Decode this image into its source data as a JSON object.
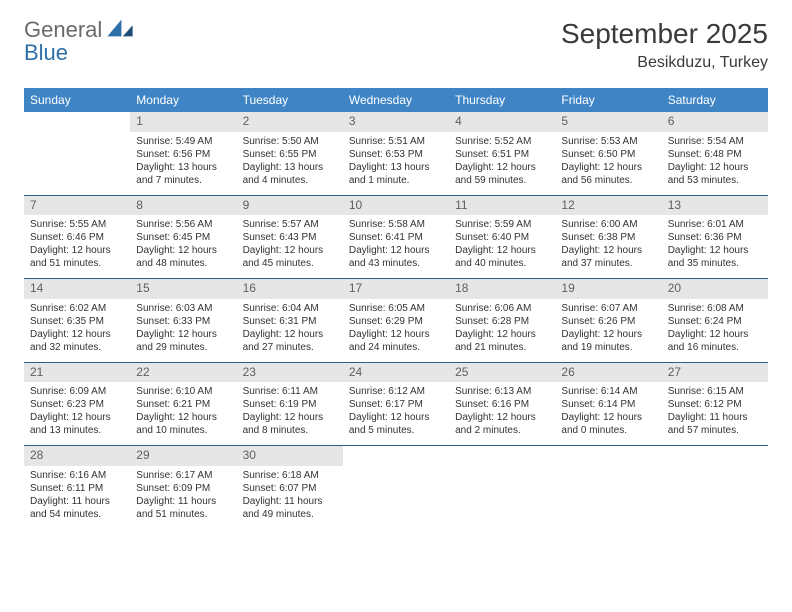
{
  "brand": {
    "line1": "General",
    "line2": "Blue"
  },
  "title": {
    "month": "September 2025",
    "location": "Besikduzu, Turkey"
  },
  "colors": {
    "header_bg": "#3f85c6",
    "header_text": "#ffffff",
    "row_divider": "#2c5f8d",
    "daynum_bg": "#e6e6e6",
    "daynum_text": "#5f5f5f",
    "body_text": "#333333",
    "brand_gray": "#6a6a6a",
    "brand_blue": "#2f6fa8"
  },
  "weekdays": [
    "Sunday",
    "Monday",
    "Tuesday",
    "Wednesday",
    "Thursday",
    "Friday",
    "Saturday"
  ],
  "weeks": [
    [
      null,
      {
        "n": "1",
        "sr": "Sunrise: 5:49 AM",
        "ss": "Sunset: 6:56 PM",
        "dl": "Daylight: 13 hours and 7 minutes."
      },
      {
        "n": "2",
        "sr": "Sunrise: 5:50 AM",
        "ss": "Sunset: 6:55 PM",
        "dl": "Daylight: 13 hours and 4 minutes."
      },
      {
        "n": "3",
        "sr": "Sunrise: 5:51 AM",
        "ss": "Sunset: 6:53 PM",
        "dl": "Daylight: 13 hours and 1 minute."
      },
      {
        "n": "4",
        "sr": "Sunrise: 5:52 AM",
        "ss": "Sunset: 6:51 PM",
        "dl": "Daylight: 12 hours and 59 minutes."
      },
      {
        "n": "5",
        "sr": "Sunrise: 5:53 AM",
        "ss": "Sunset: 6:50 PM",
        "dl": "Daylight: 12 hours and 56 minutes."
      },
      {
        "n": "6",
        "sr": "Sunrise: 5:54 AM",
        "ss": "Sunset: 6:48 PM",
        "dl": "Daylight: 12 hours and 53 minutes."
      }
    ],
    [
      {
        "n": "7",
        "sr": "Sunrise: 5:55 AM",
        "ss": "Sunset: 6:46 PM",
        "dl": "Daylight: 12 hours and 51 minutes."
      },
      {
        "n": "8",
        "sr": "Sunrise: 5:56 AM",
        "ss": "Sunset: 6:45 PM",
        "dl": "Daylight: 12 hours and 48 minutes."
      },
      {
        "n": "9",
        "sr": "Sunrise: 5:57 AM",
        "ss": "Sunset: 6:43 PM",
        "dl": "Daylight: 12 hours and 45 minutes."
      },
      {
        "n": "10",
        "sr": "Sunrise: 5:58 AM",
        "ss": "Sunset: 6:41 PM",
        "dl": "Daylight: 12 hours and 43 minutes."
      },
      {
        "n": "11",
        "sr": "Sunrise: 5:59 AM",
        "ss": "Sunset: 6:40 PM",
        "dl": "Daylight: 12 hours and 40 minutes."
      },
      {
        "n": "12",
        "sr": "Sunrise: 6:00 AM",
        "ss": "Sunset: 6:38 PM",
        "dl": "Daylight: 12 hours and 37 minutes."
      },
      {
        "n": "13",
        "sr": "Sunrise: 6:01 AM",
        "ss": "Sunset: 6:36 PM",
        "dl": "Daylight: 12 hours and 35 minutes."
      }
    ],
    [
      {
        "n": "14",
        "sr": "Sunrise: 6:02 AM",
        "ss": "Sunset: 6:35 PM",
        "dl": "Daylight: 12 hours and 32 minutes."
      },
      {
        "n": "15",
        "sr": "Sunrise: 6:03 AM",
        "ss": "Sunset: 6:33 PM",
        "dl": "Daylight: 12 hours and 29 minutes."
      },
      {
        "n": "16",
        "sr": "Sunrise: 6:04 AM",
        "ss": "Sunset: 6:31 PM",
        "dl": "Daylight: 12 hours and 27 minutes."
      },
      {
        "n": "17",
        "sr": "Sunrise: 6:05 AM",
        "ss": "Sunset: 6:29 PM",
        "dl": "Daylight: 12 hours and 24 minutes."
      },
      {
        "n": "18",
        "sr": "Sunrise: 6:06 AM",
        "ss": "Sunset: 6:28 PM",
        "dl": "Daylight: 12 hours and 21 minutes."
      },
      {
        "n": "19",
        "sr": "Sunrise: 6:07 AM",
        "ss": "Sunset: 6:26 PM",
        "dl": "Daylight: 12 hours and 19 minutes."
      },
      {
        "n": "20",
        "sr": "Sunrise: 6:08 AM",
        "ss": "Sunset: 6:24 PM",
        "dl": "Daylight: 12 hours and 16 minutes."
      }
    ],
    [
      {
        "n": "21",
        "sr": "Sunrise: 6:09 AM",
        "ss": "Sunset: 6:23 PM",
        "dl": "Daylight: 12 hours and 13 minutes."
      },
      {
        "n": "22",
        "sr": "Sunrise: 6:10 AM",
        "ss": "Sunset: 6:21 PM",
        "dl": "Daylight: 12 hours and 10 minutes."
      },
      {
        "n": "23",
        "sr": "Sunrise: 6:11 AM",
        "ss": "Sunset: 6:19 PM",
        "dl": "Daylight: 12 hours and 8 minutes."
      },
      {
        "n": "24",
        "sr": "Sunrise: 6:12 AM",
        "ss": "Sunset: 6:17 PM",
        "dl": "Daylight: 12 hours and 5 minutes."
      },
      {
        "n": "25",
        "sr": "Sunrise: 6:13 AM",
        "ss": "Sunset: 6:16 PM",
        "dl": "Daylight: 12 hours and 2 minutes."
      },
      {
        "n": "26",
        "sr": "Sunrise: 6:14 AM",
        "ss": "Sunset: 6:14 PM",
        "dl": "Daylight: 12 hours and 0 minutes."
      },
      {
        "n": "27",
        "sr": "Sunrise: 6:15 AM",
        "ss": "Sunset: 6:12 PM",
        "dl": "Daylight: 11 hours and 57 minutes."
      }
    ],
    [
      {
        "n": "28",
        "sr": "Sunrise: 6:16 AM",
        "ss": "Sunset: 6:11 PM",
        "dl": "Daylight: 11 hours and 54 minutes."
      },
      {
        "n": "29",
        "sr": "Sunrise: 6:17 AM",
        "ss": "Sunset: 6:09 PM",
        "dl": "Daylight: 11 hours and 51 minutes."
      },
      {
        "n": "30",
        "sr": "Sunrise: 6:18 AM",
        "ss": "Sunset: 6:07 PM",
        "dl": "Daylight: 11 hours and 49 minutes."
      },
      null,
      null,
      null,
      null
    ]
  ]
}
